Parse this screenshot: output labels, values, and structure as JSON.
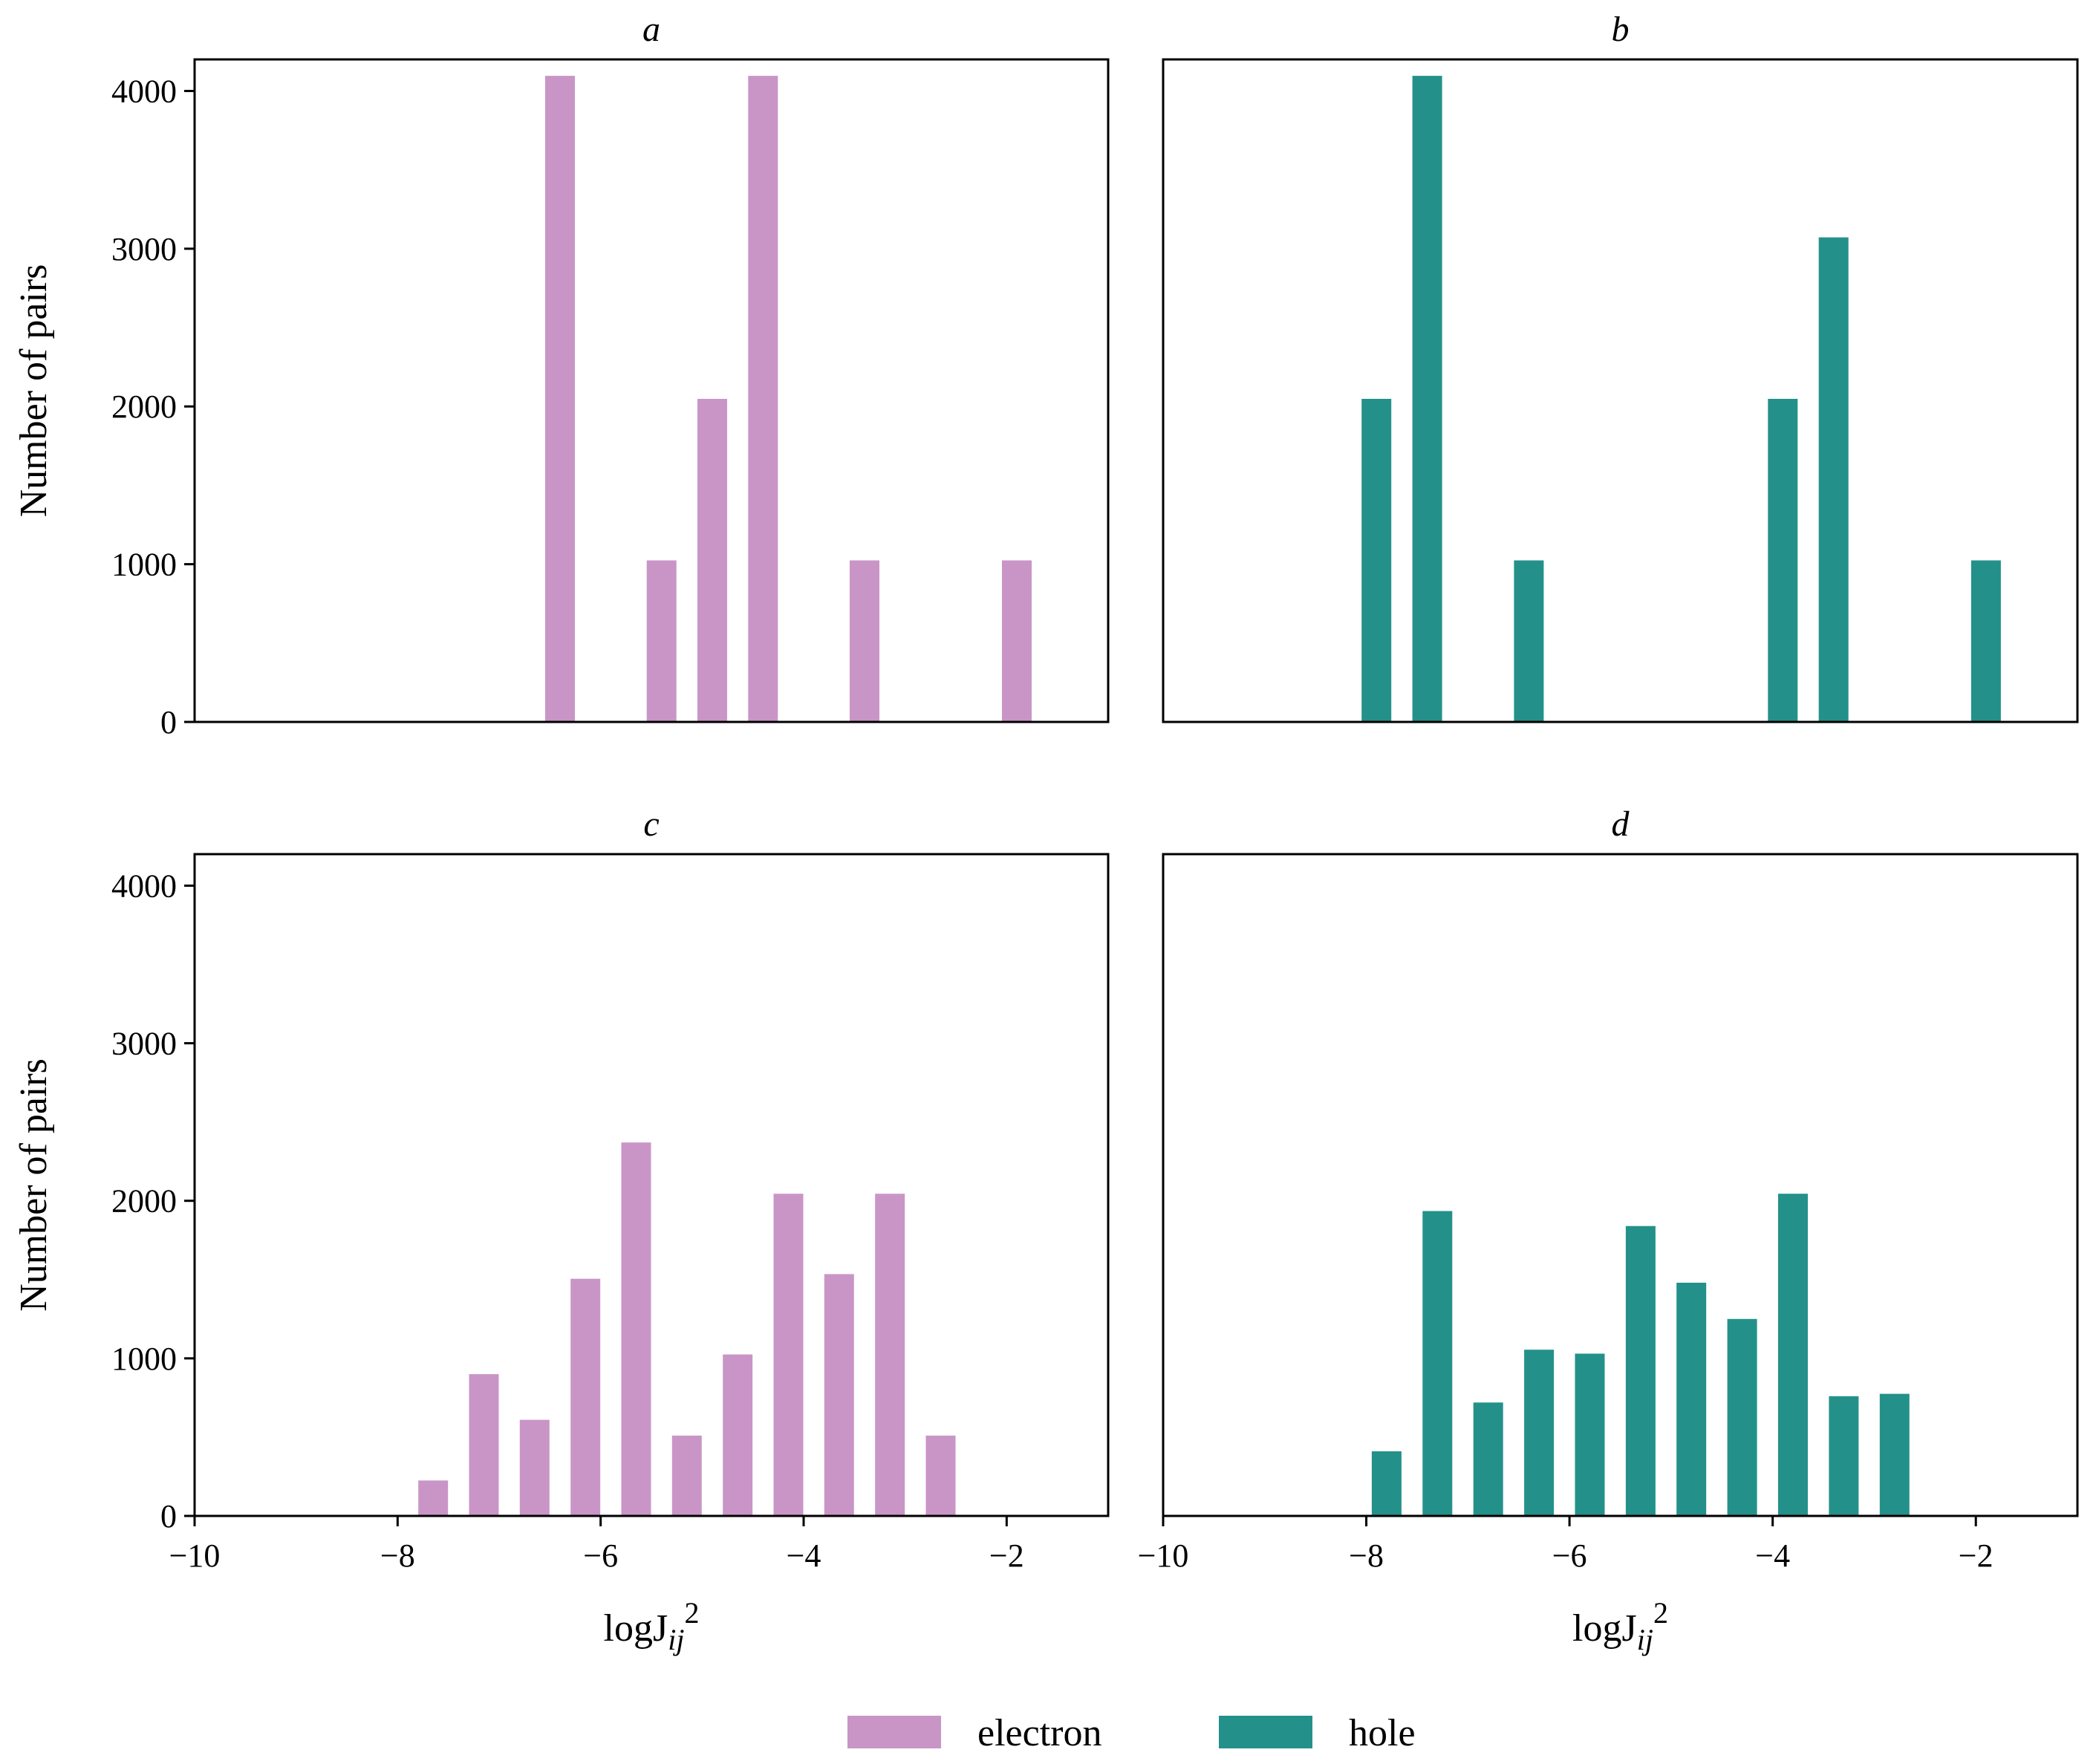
{
  "colors": {
    "electron": "#c995c7",
    "hole": "#23918a"
  },
  "legend": {
    "placement": "bottom-center",
    "entries": [
      {
        "label": "electron",
        "color_key": "electron"
      },
      {
        "label": "hole",
        "color_key": "hole"
      }
    ]
  },
  "chart_data": [
    {
      "type": "bar",
      "panel_title": "a",
      "series": "electron",
      "ylabel": "Number of pairs",
      "xlabel": "",
      "xlim": [
        -10,
        -1
      ],
      "ylim": [
        0,
        4200
      ],
      "xticks": [],
      "yticks": [
        "0",
        "1000",
        "2000",
        "3000",
        "4000"
      ],
      "x": [
        -6.4,
        -5.4,
        -4.9,
        -4.4,
        -3.4,
        -1.9
      ],
      "values": [
        4096,
        1024,
        2048,
        4096,
        1024,
        1024
      ]
    },
    {
      "type": "bar",
      "panel_title": "b",
      "series": "hole",
      "ylabel": "",
      "xlabel": "",
      "xlim": [
        -10,
        -1
      ],
      "ylim": [
        0,
        4200
      ],
      "xticks": [],
      "yticks": [],
      "x": [
        -7.9,
        -7.4,
        -6.4,
        -3.9,
        -3.4,
        -1.9
      ],
      "values": [
        2048,
        4096,
        1024,
        2048,
        3072,
        1024
      ]
    },
    {
      "type": "bar",
      "panel_title": "c",
      "series": "electron",
      "ylabel": "Number of pairs",
      "xlabel": "logJij2",
      "xlim": [
        -10,
        -1
      ],
      "ylim": [
        0,
        4200
      ],
      "xticks": [
        "−10",
        "−8",
        "−6",
        "−4",
        "−2"
      ],
      "yticks": [
        "0",
        "1000",
        "2000",
        "3000",
        "4000"
      ],
      "x": [
        -7.65,
        -7.15,
        -6.65,
        -6.15,
        -5.65,
        -5.15,
        -4.65,
        -4.15,
        -3.65,
        -3.15,
        -2.65
      ],
      "values": [
        225,
        900,
        610,
        1505,
        2370,
        510,
        1025,
        2045,
        1535,
        2045,
        510
      ]
    },
    {
      "type": "bar",
      "panel_title": "d",
      "series": "hole",
      "ylabel": "",
      "xlabel": "logJij2",
      "xlim": [
        -10,
        -1
      ],
      "ylim": [
        0,
        4200
      ],
      "xticks": [
        "−10",
        "−8",
        "−6",
        "−4",
        "−2"
      ],
      "yticks": [],
      "x": [
        -7.8,
        -7.3,
        -6.8,
        -6.3,
        -5.8,
        -5.3,
        -4.8,
        -4.3,
        -3.8,
        -3.3,
        -2.8
      ],
      "values": [
        410,
        1935,
        720,
        1055,
        1030,
        1840,
        1480,
        1250,
        2045,
        760,
        775
      ]
    }
  ]
}
